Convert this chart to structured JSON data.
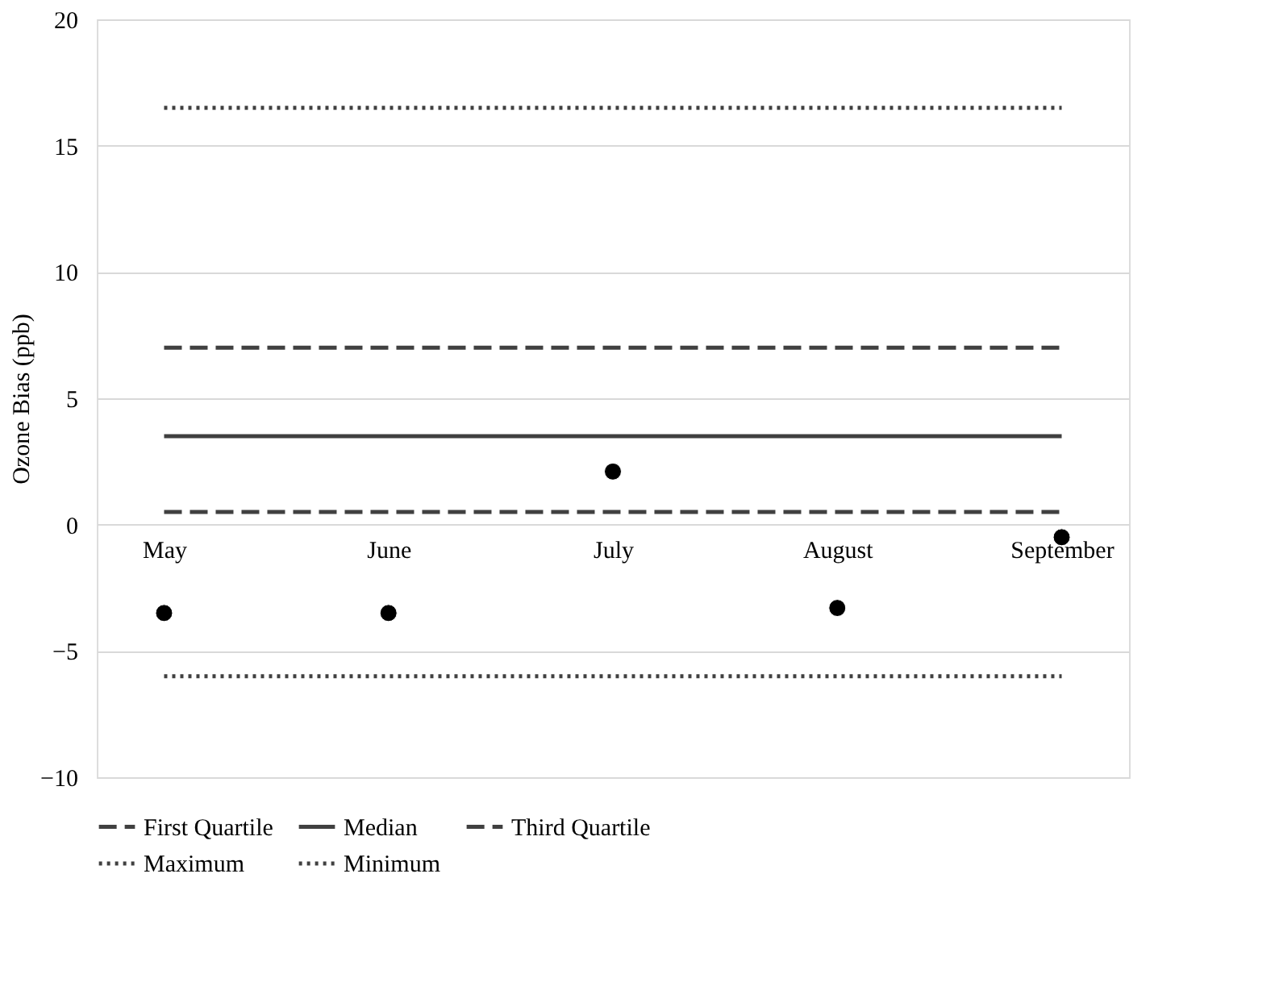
{
  "chart_data": {
    "type": "scatter",
    "ylabel": "Ozone Bias  (ppb)",
    "categories": [
      "May",
      "June",
      "July",
      "August",
      "September"
    ],
    "ylim": [
      -10,
      20
    ],
    "yticks": [
      -10,
      -5,
      0,
      5,
      10,
      15,
      20
    ],
    "grid": "y",
    "legend": "bottom",
    "series": [
      {
        "marker": "circle",
        "color": "#000000",
        "values": [
          -3.5,
          -3.5,
          2.1,
          -3.3,
          -0.5
        ]
      },
      {
        "type": "line",
        "name": "First Quartile",
        "color": "#404040",
        "line_style": "dashed",
        "values": [
          0.5,
          0.5,
          0.5,
          0.5,
          0.5
        ]
      },
      {
        "type": "line",
        "name": "Median",
        "color": "#404040",
        "line_style": "solid",
        "values": [
          3.5,
          3.5,
          3.5,
          3.5,
          3.5
        ]
      },
      {
        "type": "line",
        "name": "Third Quartile",
        "color": "#404040",
        "line_style": "dashed",
        "values": [
          7,
          7,
          7,
          7,
          7
        ]
      },
      {
        "type": "line",
        "name": "Maximum",
        "color": "#404040",
        "line_style": "dotted",
        "values": [
          16.5,
          16.5,
          16.5,
          16.5,
          16.5
        ]
      },
      {
        "type": "line",
        "name": "Minimum",
        "color": "#404040",
        "line_style": "dotted",
        "values": [
          -6,
          -6,
          -6,
          -6,
          -6
        ]
      }
    ]
  }
}
